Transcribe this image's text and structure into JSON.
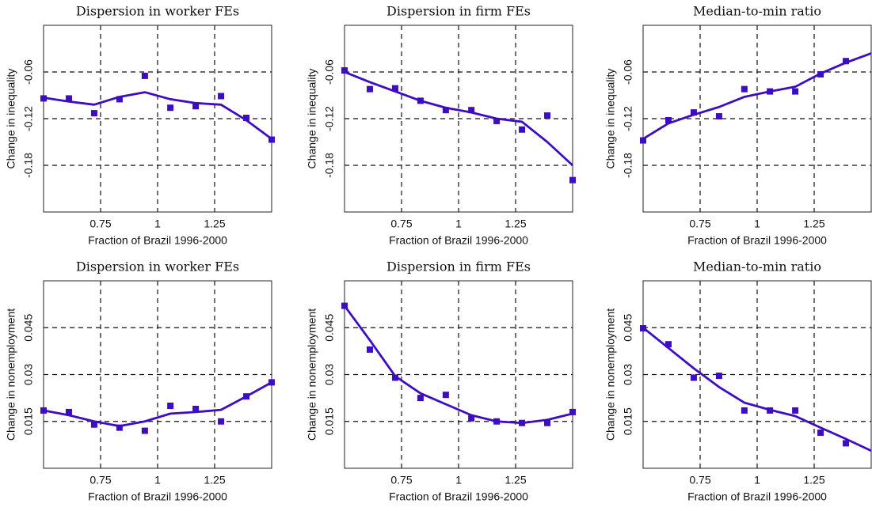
{
  "chart_data": [
    {
      "type": "line",
      "title": "Dispersion in worker FEs",
      "xlabel": "Fraction of Brazil 1996-2000",
      "ylabel": "Change in inequality",
      "x": [
        0.5,
        0.611,
        0.722,
        0.833,
        0.944,
        1.056,
        1.167,
        1.278,
        1.389,
        1.5
      ],
      "xlim": [
        0.5,
        1.5
      ],
      "xticks": [
        0.75,
        1,
        1.25
      ],
      "ylim": [
        -0.24,
        0
      ],
      "yticks": [
        -0.06,
        -0.12,
        -0.18
      ],
      "grid": true,
      "series": [
        {
          "style": "markers",
          "color": "#3d0dc2",
          "values": [
            -0.094,
            -0.094,
            -0.113,
            -0.095,
            -0.065,
            -0.106,
            -0.104,
            -0.091,
            -0.119,
            -0.147
          ]
        },
        {
          "style": "line",
          "color": "#3d0dc2",
          "values": [
            -0.093,
            -0.098,
            -0.102,
            -0.092,
            -0.086,
            -0.095,
            -0.1,
            -0.102,
            -0.122,
            -0.146
          ]
        }
      ]
    },
    {
      "type": "line",
      "title": "Dispersion in firm FEs",
      "xlabel": "Fraction of Brazil 1996-2000",
      "ylabel": "Change in inequality",
      "x": [
        0.5,
        0.611,
        0.722,
        0.833,
        0.944,
        1.056,
        1.167,
        1.278,
        1.389,
        1.5
      ],
      "xlim": [
        0.5,
        1.5
      ],
      "xticks": [
        0.75,
        1,
        1.25
      ],
      "ylim": [
        -0.24,
        0
      ],
      "yticks": [
        -0.06,
        -0.12,
        -0.18
      ],
      "grid": true,
      "series": [
        {
          "style": "markers",
          "color": "#3d0dc2",
          "values": [
            -0.058,
            -0.082,
            -0.081,
            -0.097,
            -0.109,
            -0.109,
            -0.123,
            -0.134,
            -0.116,
            -0.199
          ]
        },
        {
          "style": "line",
          "color": "#3d0dc2",
          "values": [
            -0.06,
            -0.073,
            -0.085,
            -0.097,
            -0.106,
            -0.112,
            -0.12,
            -0.124,
            -0.15,
            -0.18
          ]
        }
      ]
    },
    {
      "type": "line",
      "title": "Median-to-min ratio",
      "xlabel": "Fraction of Brazil 1996-2000",
      "ylabel": "Change in inequality",
      "x": [
        0.5,
        0.611,
        0.722,
        0.833,
        0.944,
        1.056,
        1.167,
        1.278,
        1.389,
        1.5
      ],
      "xlim": [
        0.5,
        1.5
      ],
      "xticks": [
        0.75,
        1,
        1.25
      ],
      "ylim": [
        -0.24,
        0
      ],
      "yticks": [
        -0.06,
        -0.12,
        -0.18
      ],
      "grid": true,
      "series": [
        {
          "style": "markers",
          "color": "#3d0dc2",
          "values": [
            -0.148,
            -0.122,
            -0.112,
            -0.117,
            -0.082,
            -0.085,
            -0.085,
            -0.063,
            -0.046,
            null
          ]
        },
        {
          "style": "line",
          "color": "#3d0dc2",
          "values": [
            -0.146,
            -0.126,
            -0.115,
            -0.105,
            -0.092,
            -0.085,
            -0.079,
            -0.062,
            -0.048,
            -0.036
          ]
        }
      ]
    },
    {
      "type": "line",
      "title": "Dispersion in worker FEs",
      "xlabel": "Fraction of Brazil 1996-2000",
      "ylabel": "Change in nonemployment",
      "x": [
        0.5,
        0.611,
        0.722,
        0.833,
        0.944,
        1.056,
        1.167,
        1.278,
        1.389,
        1.5
      ],
      "xlim": [
        0.5,
        1.5
      ],
      "xticks": [
        0.75,
        1,
        1.25
      ],
      "ylim": [
        0,
        0.06
      ],
      "yticks": [
        0.015,
        0.03,
        0.045
      ],
      "grid": true,
      "series": [
        {
          "style": "markers",
          "color": "#3d0dc2",
          "values": [
            0.0185,
            0.018,
            0.014,
            0.013,
            0.012,
            0.02,
            0.019,
            0.015,
            0.023,
            0.0275
          ]
        },
        {
          "style": "line",
          "color": "#3d0dc2",
          "values": [
            0.0185,
            0.017,
            0.015,
            0.0135,
            0.015,
            0.0175,
            0.018,
            0.0187,
            0.023,
            0.0275
          ]
        }
      ]
    },
    {
      "type": "line",
      "title": "Dispersion in firm FEs",
      "xlabel": "Fraction of Brazil 1996-2000",
      "ylabel": "Change in nonemployment",
      "x": [
        0.5,
        0.611,
        0.722,
        0.833,
        0.944,
        1.056,
        1.167,
        1.278,
        1.389,
        1.5
      ],
      "xlim": [
        0.5,
        1.5
      ],
      "xticks": [
        0.75,
        1,
        1.25
      ],
      "ylim": [
        0,
        0.06
      ],
      "yticks": [
        0.015,
        0.03,
        0.045
      ],
      "grid": true,
      "series": [
        {
          "style": "markers",
          "color": "#3d0dc2",
          "values": [
            0.052,
            0.038,
            0.029,
            0.0225,
            0.0235,
            0.016,
            0.015,
            0.0145,
            0.0145,
            0.018
          ]
        },
        {
          "style": "line",
          "color": "#3d0dc2",
          "values": [
            0.052,
            0.041,
            0.0295,
            0.024,
            0.0205,
            0.017,
            0.015,
            0.0145,
            0.0155,
            0.0175
          ]
        }
      ]
    },
    {
      "type": "line",
      "title": "Median-to-min ratio",
      "xlabel": "Fraction of Brazil 1996-2000",
      "ylabel": "Change in nonemployment",
      "x": [
        0.5,
        0.611,
        0.722,
        0.833,
        0.944,
        1.056,
        1.167,
        1.278,
        1.389,
        1.5
      ],
      "xlim": [
        0.5,
        1.5
      ],
      "xticks": [
        0.75,
        1,
        1.25
      ],
      "ylim": [
        0,
        0.06
      ],
      "yticks": [
        0.015,
        0.03,
        0.045
      ],
      "grid": true,
      "series": [
        {
          "style": "markers",
          "color": "#3d0dc2",
          "values": [
            0.0448,
            0.0397,
            0.029,
            0.0296,
            0.0185,
            0.0185,
            0.0185,
            0.0114,
            0.008,
            null
          ]
        },
        {
          "style": "line",
          "color": "#3d0dc2",
          "values": [
            0.045,
            0.0385,
            0.032,
            0.026,
            0.021,
            0.0187,
            0.0167,
            0.013,
            0.0094,
            0.0056
          ]
        }
      ]
    }
  ]
}
